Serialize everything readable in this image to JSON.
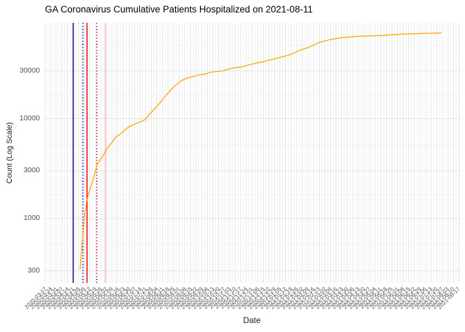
{
  "chart_data": {
    "type": "line",
    "title": "GA Coronavirus Cumulative Patients Hospitalized on 2021-08-11",
    "xlabel": "Date",
    "ylabel": "Count (Log Scale)",
    "y_scale": "log10",
    "grid": true,
    "legend": "none",
    "ylim": [
      220,
      91000
    ],
    "y_ticks": [
      300,
      1000,
      3000,
      10000,
      30000
    ],
    "y_tick_labels": [
      "300",
      "1000",
      "3000",
      "10000",
      "30000"
    ],
    "y_minor_gridlines": [
      548,
      1732,
      5477,
      17321,
      54772
    ],
    "x_tick_labels": [
      "2020-03-17",
      "2020-03-24",
      "2020-03-31",
      "2020-04-07",
      "2020-04-14",
      "2020-04-21",
      "2020-04-28",
      "2020-05-05",
      "2020-05-12",
      "2020-05-19",
      "2020-05-26",
      "2020-06-02",
      "2020-06-09",
      "2020-06-16",
      "2020-06-23",
      "2020-06-30",
      "2020-07-07",
      "2020-07-14",
      "2020-07-21",
      "2020-07-28",
      "2020-08-04",
      "2020-08-11",
      "2020-08-18",
      "2020-08-25",
      "2020-09-01",
      "2020-09-08",
      "2020-09-15",
      "2020-09-22",
      "2020-09-29",
      "2020-10-06",
      "2020-10-13",
      "2020-10-20",
      "2020-10-27",
      "2020-11-03",
      "2020-11-10",
      "2020-11-17",
      "2020-11-24",
      "2020-12-01",
      "2020-12-08",
      "2020-12-15",
      "2020-12-22",
      "2020-12-29",
      "2021-01-05",
      "2021-01-12",
      "2021-01-19",
      "2021-01-26",
      "2021-02-02",
      "2021-02-09",
      "2021-02-16",
      "2021-02-23",
      "2021-03-02",
      "2021-03-09",
      "2021-03-16",
      "2021-03-23",
      "2021-03-30",
      "2021-04-06",
      "2021-04-13",
      "2021-04-20",
      "2021-04-27",
      "2021-05-04",
      "2021-05-11",
      "2021-05-18",
      "2021-05-25",
      "2021-06-01",
      "2021-06-08",
      "2021-06-15",
      "2021-06-22",
      "2021-06-29",
      "2021-07-06",
      "2021-07-13",
      "2021-07-20",
      "2021-07-27",
      "2021-08-03",
      "2021-08-10",
      "2021-08-17"
    ],
    "x_tick_interval_days": 7,
    "series": [
      {
        "name": "cumulative-patients-hospitalized",
        "color": "#FFA500",
        "points": [
          [
            44,
            310
          ],
          [
            45,
            413
          ],
          [
            47,
            618
          ],
          [
            49,
            999
          ],
          [
            51,
            1271
          ],
          [
            52,
            1493
          ],
          [
            55,
            1810
          ],
          [
            58,
            2158
          ],
          [
            60,
            2416
          ],
          [
            63,
            2976
          ],
          [
            65,
            3439
          ],
          [
            68,
            3787
          ],
          [
            71,
            4039
          ],
          [
            74,
            4443
          ],
          [
            78,
            5053
          ],
          [
            83,
            5653
          ],
          [
            87,
            6327
          ],
          [
            91,
            6747
          ],
          [
            96,
            7194
          ],
          [
            100,
            7671
          ],
          [
            104,
            8178
          ],
          [
            109,
            8583
          ],
          [
            113,
            8862
          ],
          [
            117,
            9150
          ],
          [
            122,
            9450
          ],
          [
            126,
            9915
          ],
          [
            130,
            10920
          ],
          [
            135,
            12025
          ],
          [
            139,
            13022
          ],
          [
            143,
            14110
          ],
          [
            148,
            15792
          ],
          [
            152,
            17384
          ],
          [
            156,
            18838
          ],
          [
            161,
            20735
          ],
          [
            165,
            22116
          ],
          [
            169,
            23586
          ],
          [
            174,
            24750
          ],
          [
            178,
            25552
          ],
          [
            182,
            25965
          ],
          [
            187,
            26598
          ],
          [
            191,
            27246
          ],
          [
            195,
            27500
          ],
          [
            200,
            27909
          ],
          [
            204,
            28590
          ],
          [
            208,
            29284
          ],
          [
            213,
            29500
          ],
          [
            217,
            29750
          ],
          [
            221,
            30000
          ],
          [
            226,
            30730
          ],
          [
            230,
            31480
          ],
          [
            234,
            31990
          ],
          [
            239,
            32510
          ],
          [
            243,
            32770
          ],
          [
            247,
            33040
          ],
          [
            252,
            34110
          ],
          [
            256,
            34670
          ],
          [
            260,
            35230
          ],
          [
            265,
            36080
          ],
          [
            269,
            36670
          ],
          [
            273,
            36960
          ],
          [
            278,
            38170
          ],
          [
            282,
            38790
          ],
          [
            286,
            39410
          ],
          [
            291,
            40380
          ],
          [
            295,
            41370
          ],
          [
            299,
            42040
          ],
          [
            304,
            43060
          ],
          [
            308,
            44100
          ],
          [
            312,
            45540
          ],
          [
            317,
            47790
          ],
          [
            325,
            50140
          ],
          [
            330,
            51760
          ],
          [
            343,
            57930
          ],
          [
            356,
            61770
          ],
          [
            369,
            64300
          ],
          [
            382,
            65880
          ],
          [
            395,
            66930
          ],
          [
            408,
            67470
          ],
          [
            421,
            68010
          ],
          [
            434,
            69120
          ],
          [
            447,
            70230
          ],
          [
            460,
            70800
          ],
          [
            473,
            71370
          ],
          [
            486,
            71700
          ],
          [
            496,
            72180
          ]
        ]
      }
    ],
    "vlines": [
      {
        "name": "event-line-1",
        "day": 35.1,
        "color": "#00008B",
        "style": "solid"
      },
      {
        "name": "event-line-2",
        "day": 47.5,
        "color": "#1414CC",
        "style": "dotted"
      },
      {
        "name": "event-line-3",
        "day": 52.4,
        "color": "#EE0000",
        "style": "solid"
      },
      {
        "name": "event-line-4",
        "day": 64.8,
        "color": "#B22222",
        "style": "dotted"
      },
      {
        "name": "event-line-5",
        "day": 75.5,
        "color": "#FFB6C1",
        "style": "solid"
      },
      {
        "name": "event-line-6",
        "day": 89.1,
        "color": "#FFD9DE",
        "style": "dotted"
      }
    ],
    "grid_colors": {
      "major": "#E4E4E4",
      "minor": "#F1F1F1"
    }
  }
}
